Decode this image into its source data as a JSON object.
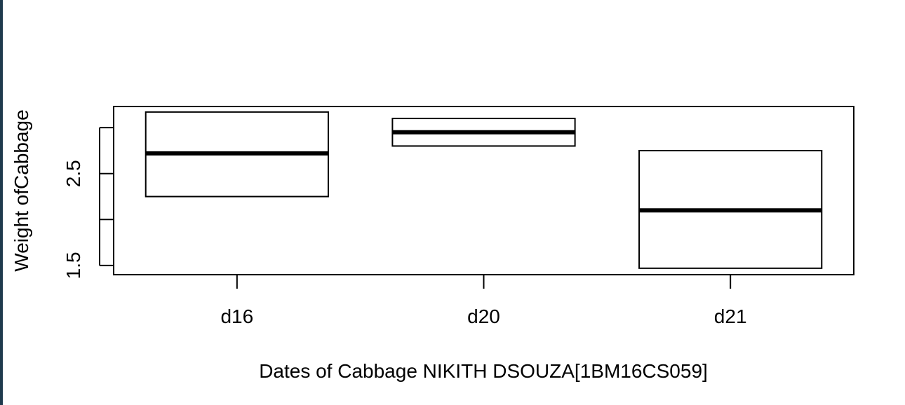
{
  "chart_data": {
    "type": "boxplot",
    "xlabel": "Dates of Cabbage NIKITH DSOUZA[1BM16CS059]",
    "ylabel": "Weight ofCabbage",
    "categories": [
      "d16",
      "d20",
      "d21"
    ],
    "boxes": [
      {
        "category": "d16",
        "min": 2.25,
        "q1": 2.25,
        "median": 2.72,
        "q3": 3.17,
        "max": 3.17
      },
      {
        "category": "d20",
        "min": 2.8,
        "q1": 2.8,
        "median": 2.95,
        "q3": 3.1,
        "max": 3.1
      },
      {
        "category": "d21",
        "min": 1.47,
        "q1": 1.47,
        "median": 2.1,
        "q3": 2.75,
        "max": 2.75
      }
    ],
    "yticks": [
      1.5,
      2.0,
      2.5,
      3.0
    ],
    "ytick_labels": [
      "1.5",
      "",
      "2.5",
      ""
    ],
    "ylim": [
      1.4,
      3.23
    ],
    "grid": false,
    "legend": "none",
    "colors": {
      "stroke": "#000000",
      "fill": "#ffffff",
      "frame": "#000000"
    }
  }
}
